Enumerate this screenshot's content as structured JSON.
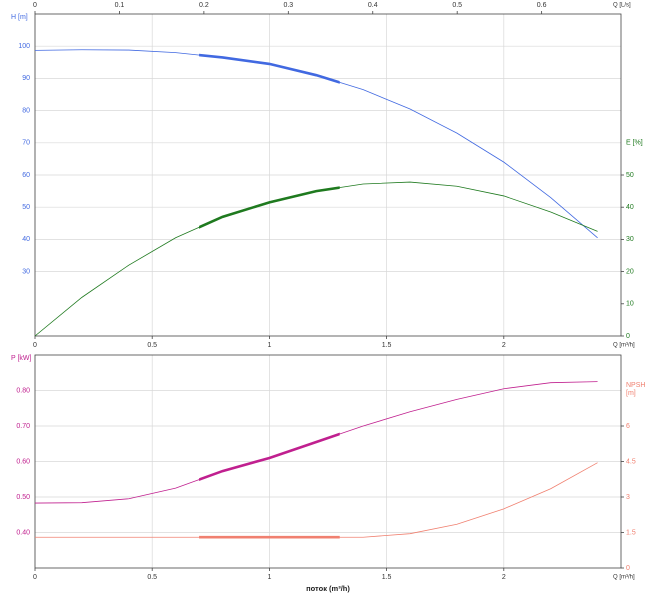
{
  "chart_data": [
    {
      "type": "line",
      "xlabel": "Q [m³/h]",
      "x2label": "Q [L/s]",
      "ylabel": "H [m]",
      "y2label": [
        "E [%]"
      ],
      "x": [
        0,
        0.2,
        0.4,
        0.6,
        0.8,
        1.0,
        1.2,
        1.4,
        1.6,
        1.8,
        2.0,
        2.2,
        2.4
      ],
      "xlim": [
        0,
        2.5
      ],
      "xticks": [
        0,
        0.5,
        1,
        1.5,
        2
      ],
      "x2lim": [
        0,
        0.694
      ],
      "x2ticks": [
        0,
        0.1,
        0.2,
        0.3,
        0.4,
        0.5,
        0.6
      ],
      "ylim": [
        10,
        110
      ],
      "yticks": [
        30,
        40,
        50,
        60,
        70,
        80,
        90,
        100
      ],
      "y2lim": [
        0,
        100
      ],
      "y2ticks": [
        0,
        10,
        20,
        30,
        40,
        50
      ],
      "duty_range": [
        0.7,
        1.3
      ],
      "grid": true,
      "series": [
        {
          "name": "H",
          "color": "#4169e1",
          "axis": "y",
          "values": [
            98.7,
            98.9,
            98.8,
            98.0,
            96.5,
            94.5,
            91.0,
            86.5,
            80.5,
            73.0,
            64.0,
            53.0,
            40.5
          ]
        },
        {
          "name": "E",
          "color": "#1f7a1f",
          "axis": "y2",
          "values": [
            0,
            12,
            22,
            30.5,
            37,
            41.5,
            45,
            47.2,
            47.8,
            46.5,
            43.5,
            38.5,
            32.5
          ]
        }
      ]
    },
    {
      "type": "line",
      "xlabel": "Q [m³/h]",
      "title": "поток (m³/h)",
      "ylabel": "P [kW]",
      "y2label": [
        "NPSH",
        "[m]"
      ],
      "x": [
        0,
        0.2,
        0.4,
        0.6,
        0.8,
        1.0,
        1.2,
        1.4,
        1.6,
        1.8,
        2.0,
        2.2,
        2.4
      ],
      "xlim": [
        0,
        2.5
      ],
      "xticks": [
        0,
        0.5,
        1,
        1.5,
        2
      ],
      "ylim": [
        0.3,
        0.9
      ],
      "yticks": [
        {
          "value": 0.4,
          "label": "0.40"
        },
        {
          "value": 0.5,
          "label": "0.50"
        },
        {
          "value": 0.6,
          "label": "0.60"
        },
        {
          "value": 0.7,
          "label": "0.70"
        },
        {
          "value": 0.8,
          "label": "0.80"
        }
      ],
      "y2lim": [
        0,
        9
      ],
      "y2ticks": [
        0,
        1.5,
        3,
        4.5,
        6
      ],
      "duty_range": [
        0.7,
        1.3
      ],
      "grid": true,
      "series": [
        {
          "name": "P",
          "color": "#c0208f",
          "axis": "y",
          "values": [
            0.483,
            0.484,
            0.495,
            0.525,
            0.573,
            0.61,
            0.655,
            0.7,
            0.74,
            0.775,
            0.805,
            0.822,
            0.825
          ]
        },
        {
          "name": "NPSH",
          "color": "#f08070",
          "axis": "y2",
          "values": [
            1.3,
            1.3,
            1.3,
            1.3,
            1.3,
            1.3,
            1.3,
            1.3,
            1.45,
            1.85,
            2.5,
            3.35,
            4.45
          ]
        }
      ]
    }
  ]
}
